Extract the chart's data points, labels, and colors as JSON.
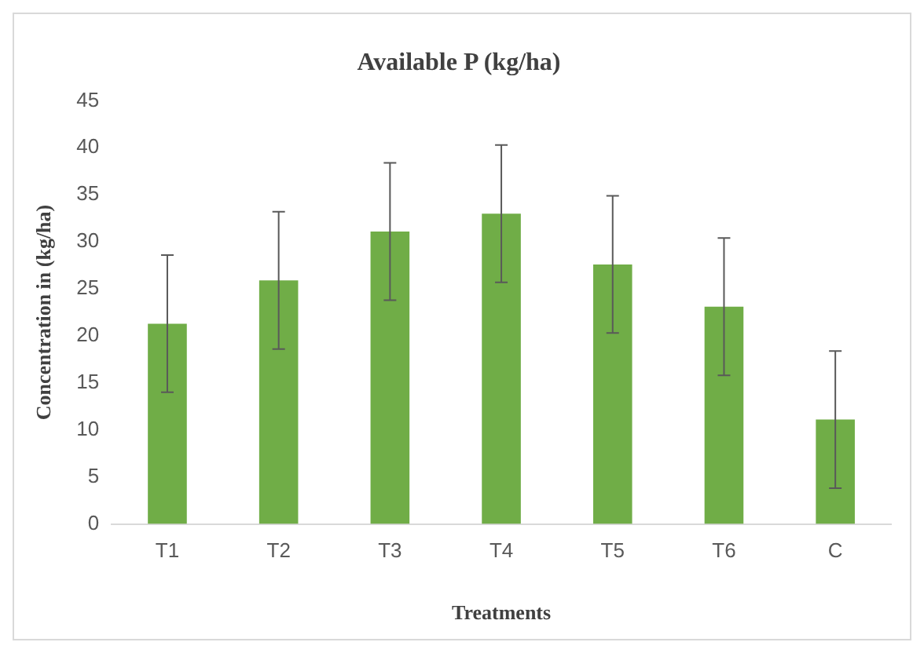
{
  "chart_data": {
    "type": "bar",
    "title": "Available P (kg/ha)",
    "xlabel": "Treatments",
    "ylabel": "Concentration in (kg/ha)",
    "categories": [
      "T1",
      "T2",
      "T3",
      "T4",
      "T5",
      "T6",
      "C"
    ],
    "values": [
      21.3,
      25.9,
      31.1,
      33.0,
      27.6,
      23.1,
      11.1
    ],
    "errors": [
      7.3,
      7.3,
      7.3,
      7.3,
      7.3,
      7.3,
      7.3
    ],
    "color": "#70ad47",
    "ylim": [
      0,
      45
    ],
    "yticks": [
      0,
      5,
      10,
      15,
      20,
      25,
      30,
      35,
      40,
      45
    ],
    "grid": false,
    "legend": false
  }
}
